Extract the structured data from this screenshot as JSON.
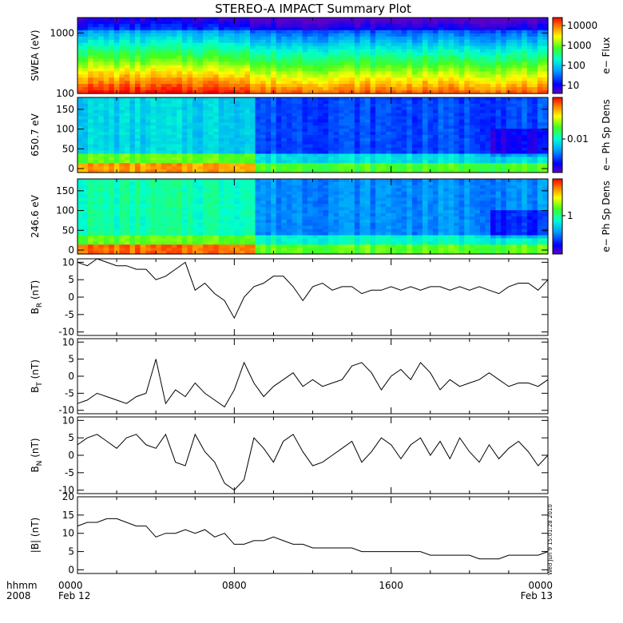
{
  "title": "STEREO-A IMPACT Summary Plot",
  "timestamp": "Wed Jun  9 15:01:28 2010",
  "time_axis": {
    "left_labels": [
      "hhmm",
      "2008"
    ],
    "ticks": [
      {
        "hour": 0,
        "line1": "0000",
        "line2": "Feb 12"
      },
      {
        "hour": 8,
        "line1": "0800",
        "line2": ""
      },
      {
        "hour": 16,
        "line1": "1600",
        "line2": ""
      },
      {
        "hour": 24,
        "line1": "0000",
        "line2": "Feb 13"
      }
    ]
  },
  "colorbars": [
    {
      "label": "e− Flux",
      "ticks": [
        "10000",
        "1000",
        "100",
        "10"
      ]
    },
    {
      "label": "e− Ph Sp Dens",
      "ticks": [
        "0.01"
      ]
    },
    {
      "label": "e− Ph Sp Dens",
      "ticks": [
        "1"
      ]
    }
  ],
  "chart_data": [
    {
      "type": "heatmap",
      "ylabel": "SWEA (eV)",
      "y_scale": "log",
      "yticks": [
        "1000",
        "100"
      ],
      "xlim": [
        0,
        24
      ],
      "ylim": [
        100,
        1800
      ],
      "description_values": "energy spectrogram; high flux at low energy, decreasing with energy, drop after ~08:30"
    },
    {
      "type": "heatmap",
      "ylabel": "650.7 eV",
      "yticks": [
        "0",
        "50",
        "100",
        "150"
      ],
      "xlim": [
        0,
        24
      ],
      "ylim": [
        -10,
        180
      ]
    },
    {
      "type": "heatmap",
      "ylabel": "246.6 eV",
      "yticks": [
        "0",
        "50",
        "100",
        "150"
      ],
      "xlim": [
        0,
        24
      ],
      "ylim": [
        -10,
        180
      ]
    },
    {
      "type": "line",
      "ylabel_main": "B",
      "ylabel_sub": "R",
      "ylabel_unit": " (nT)",
      "yticks": [
        "10",
        "5",
        "0",
        "-5",
        "-10"
      ],
      "ylim": [
        -11,
        11
      ],
      "xlim": [
        0,
        24
      ],
      "x": [
        0,
        0.5,
        1,
        1.5,
        2,
        2.5,
        3,
        3.5,
        4,
        4.5,
        5,
        5.5,
        6,
        6.5,
        7,
        7.5,
        8,
        8.5,
        9,
        9.5,
        10,
        10.5,
        11,
        11.5,
        12,
        12.5,
        13,
        13.5,
        14,
        14.5,
        15,
        15.5,
        16,
        16.5,
        17,
        17.5,
        18,
        18.5,
        19,
        19.5,
        20,
        20.5,
        21,
        21.5,
        22,
        22.5,
        23,
        23.5,
        24
      ],
      "values": [
        10,
        9,
        11,
        10,
        9,
        9,
        8,
        8,
        5,
        6,
        8,
        10,
        2,
        4,
        1,
        -1,
        -6,
        0,
        3,
        4,
        6,
        6,
        3,
        -1,
        3,
        4,
        2,
        3,
        3,
        1,
        2,
        2,
        3,
        2,
        3,
        2,
        3,
        3,
        2,
        3,
        2,
        3,
        2,
        1,
        3,
        4,
        4,
        2,
        5
      ]
    },
    {
      "type": "line",
      "ylabel_main": "B",
      "ylabel_sub": "T",
      "ylabel_unit": " (nT)",
      "yticks": [
        "10",
        "5",
        "0",
        "-5",
        "-10"
      ],
      "ylim": [
        -11,
        11
      ],
      "xlim": [
        0,
        24
      ],
      "x": [
        0,
        0.5,
        1,
        1.5,
        2,
        2.5,
        3,
        3.5,
        4,
        4.5,
        5,
        5.5,
        6,
        6.5,
        7,
        7.5,
        8,
        8.5,
        9,
        9.5,
        10,
        10.5,
        11,
        11.5,
        12,
        12.5,
        13,
        13.5,
        14,
        14.5,
        15,
        15.5,
        16,
        16.5,
        17,
        17.5,
        18,
        18.5,
        19,
        19.5,
        20,
        20.5,
        21,
        21.5,
        22,
        22.5,
        23,
        23.5,
        24
      ],
      "values": [
        -8,
        -7,
        -5,
        -6,
        -7,
        -8,
        -6,
        -5,
        5,
        -8,
        -4,
        -6,
        -2,
        -5,
        -7,
        -9,
        -4,
        4,
        -2,
        -6,
        -3,
        -1,
        1,
        -3,
        -1,
        -3,
        -2,
        -1,
        3,
        4,
        1,
        -4,
        0,
        2,
        -1,
        4,
        1,
        -4,
        -1,
        -3,
        -2,
        -1,
        1,
        -1,
        -3,
        -2,
        -2,
        -3,
        -1
      ]
    },
    {
      "type": "line",
      "ylabel_main": "B",
      "ylabel_sub": "N",
      "ylabel_unit": " (nT)",
      "yticks": [
        "10",
        "5",
        "0",
        "-5",
        "-10"
      ],
      "ylim": [
        -11,
        11
      ],
      "xlim": [
        0,
        24
      ],
      "x": [
        0,
        0.5,
        1,
        1.5,
        2,
        2.5,
        3,
        3.5,
        4,
        4.5,
        5,
        5.5,
        6,
        6.5,
        7,
        7.5,
        8,
        8.5,
        9,
        9.5,
        10,
        10.5,
        11,
        11.5,
        12,
        12.5,
        13,
        13.5,
        14,
        14.5,
        15,
        15.5,
        16,
        16.5,
        17,
        17.5,
        18,
        18.5,
        19,
        19.5,
        20,
        20.5,
        21,
        21.5,
        22,
        22.5,
        23,
        23.5,
        24
      ],
      "values": [
        3,
        5,
        6,
        4,
        2,
        5,
        6,
        3,
        2,
        6,
        -2,
        -3,
        6,
        1,
        -2,
        -8,
        -10,
        -7,
        5,
        2,
        -2,
        4,
        6,
        1,
        -3,
        -2,
        0,
        2,
        4,
        -2,
        1,
        5,
        3,
        -1,
        3,
        5,
        0,
        4,
        -1,
        5,
        1,
        -2,
        3,
        -1,
        2,
        4,
        1,
        -3,
        0
      ]
    },
    {
      "type": "line",
      "ylabel": "|B| (nT)",
      "yticks": [
        "20",
        "15",
        "10",
        "5",
        "0"
      ],
      "ylim": [
        -1,
        20
      ],
      "xlim": [
        0,
        24
      ],
      "x": [
        0,
        0.5,
        1,
        1.5,
        2,
        2.5,
        3,
        3.5,
        4,
        4.5,
        5,
        5.5,
        6,
        6.5,
        7,
        7.5,
        8,
        8.5,
        9,
        9.5,
        10,
        10.5,
        11,
        11.5,
        12,
        12.5,
        13,
        13.5,
        14,
        14.5,
        15,
        15.5,
        16,
        16.5,
        17,
        17.5,
        18,
        18.5,
        19,
        19.5,
        20,
        20.5,
        21,
        21.5,
        22,
        22.5,
        23,
        23.5,
        24
      ],
      "values": [
        12,
        13,
        13,
        14,
        14,
        13,
        12,
        12,
        9,
        10,
        10,
        11,
        10,
        11,
        9,
        10,
        7,
        7,
        8,
        8,
        9,
        8,
        7,
        7,
        6,
        6,
        6,
        6,
        6,
        5,
        5,
        5,
        5,
        5,
        5,
        5,
        4,
        4,
        4,
        4,
        4,
        3,
        3,
        3,
        4,
        4,
        4,
        4,
        5
      ]
    }
  ]
}
